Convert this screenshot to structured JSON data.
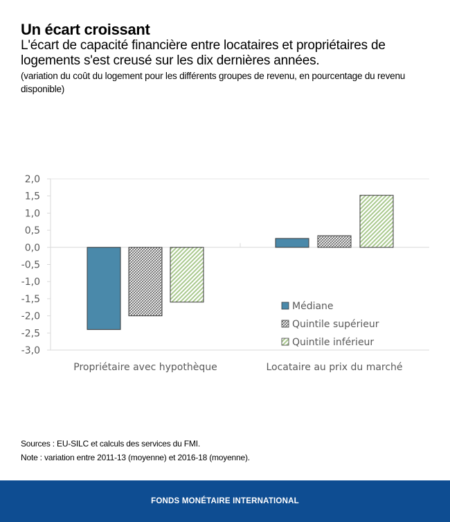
{
  "header": {
    "title": "Un écart croissant",
    "subtitle": "L'écart de capacité financière entre locataires et propriétaires de logements s'est creusé sur les dix dernières années.",
    "note": "(variation du coût du logement pour les différents groupes de revenu, en pourcentage du revenu disponible)"
  },
  "chart_data": {
    "type": "bar",
    "title": "",
    "xlabel": "",
    "ylabel": "",
    "categories": [
      "Propriétaire avec hypothèque",
      "Locataire au prix du marché"
    ],
    "series": [
      {
        "name": "Médiane",
        "values": [
          -2.4,
          0.26
        ],
        "color": "#4a89aa",
        "pattern": "solid"
      },
      {
        "name": "Quintile supérieur",
        "values": [
          -2.0,
          0.34
        ],
        "color": "#7f7f7f",
        "pattern": "crosshatch"
      },
      {
        "name": "Quintile inférieur",
        "values": [
          -1.6,
          1.52
        ],
        "color": "#a9c98d",
        "pattern": "diagonal"
      }
    ],
    "ylim": [
      -3.0,
      2.0
    ],
    "yticks": [
      2.0,
      1.5,
      1.0,
      0.5,
      0.0,
      -0.5,
      -1.0,
      -1.5,
      -2.0,
      -2.5,
      -3.0
    ],
    "ytick_labels": [
      "2,0",
      "1,5",
      "1,0",
      "0,5",
      "0,0",
      "-0,5",
      "-1,0",
      "-1,5",
      "-2,0",
      "-2,5",
      "-3,0"
    ],
    "grid": false,
    "legend": {
      "position": "bottom-right",
      "entries": [
        "Médiane",
        "Quintile supérieur",
        "Quintile inférieur"
      ]
    }
  },
  "footer": {
    "sources": "Sources : EU-SILC et calculs des services du FMI.",
    "note": "Note : variation entre 2011-13 (moyenne) et 2016-18 (moyenne).",
    "brand": "FONDS MONÉTAIRE INTERNATIONAL",
    "brand_color": "#0e4d92"
  }
}
